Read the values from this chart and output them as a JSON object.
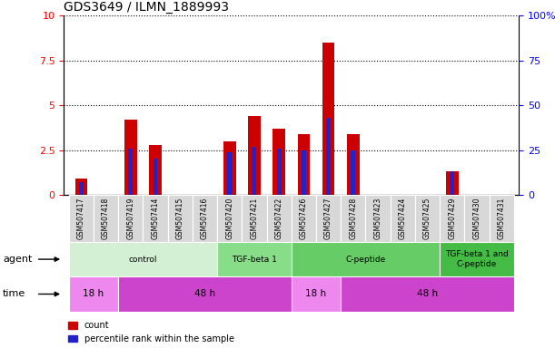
{
  "title": "GDS3649 / ILMN_1889993",
  "samples": [
    "GSM507417",
    "GSM507418",
    "GSM507419",
    "GSM507414",
    "GSM507415",
    "GSM507416",
    "GSM507420",
    "GSM507421",
    "GSM507422",
    "GSM507426",
    "GSM507427",
    "GSM507428",
    "GSM507423",
    "GSM507424",
    "GSM507425",
    "GSM507429",
    "GSM507430",
    "GSM507431"
  ],
  "count_values": [
    0.9,
    0.0,
    4.2,
    2.8,
    0.0,
    0.0,
    3.0,
    4.4,
    3.7,
    3.4,
    8.5,
    3.4,
    0.0,
    0.0,
    0.0,
    1.3,
    0.0,
    0.0
  ],
  "percentile_values": [
    0.7,
    0.0,
    2.6,
    2.0,
    0.0,
    0.0,
    2.4,
    2.7,
    2.6,
    2.5,
    4.3,
    2.5,
    0.0,
    0.0,
    0.0,
    1.3,
    0.0,
    0.0
  ],
  "ylim": [
    0,
    10
  ],
  "y2lim": [
    0,
    100
  ],
  "yticks": [
    0,
    2.5,
    5,
    7.5,
    10
  ],
  "ytick_labels": [
    "0",
    "2.5",
    "5",
    "7.5",
    "10"
  ],
  "y2ticks": [
    0,
    25,
    50,
    75,
    100
  ],
  "y2tick_labels": [
    "0",
    "25",
    "50",
    "75",
    "100%"
  ],
  "count_color": "#cc0000",
  "percentile_color": "#2222cc",
  "agent_groups": [
    {
      "label": "control",
      "start": 0,
      "end": 5,
      "color": "#d4f0d4"
    },
    {
      "label": "TGF-beta 1",
      "start": 6,
      "end": 8,
      "color": "#88dd88"
    },
    {
      "label": "C-peptide",
      "start": 9,
      "end": 14,
      "color": "#66cc66"
    },
    {
      "label": "TGF-beta 1 and\nC-peptide",
      "start": 15,
      "end": 17,
      "color": "#44bb44"
    }
  ],
  "time_groups": [
    {
      "label": "18 h",
      "start": 0,
      "end": 1,
      "color": "#ee88ee"
    },
    {
      "label": "48 h",
      "start": 2,
      "end": 8,
      "color": "#cc44cc"
    },
    {
      "label": "18 h",
      "start": 9,
      "end": 10,
      "color": "#ee88ee"
    },
    {
      "label": "48 h",
      "start": 11,
      "end": 17,
      "color": "#cc44cc"
    }
  ],
  "sample_bg_color": "#d8d8d8",
  "title_fontsize": 10,
  "bar_width": 0.5,
  "blue_bar_width": 0.18
}
